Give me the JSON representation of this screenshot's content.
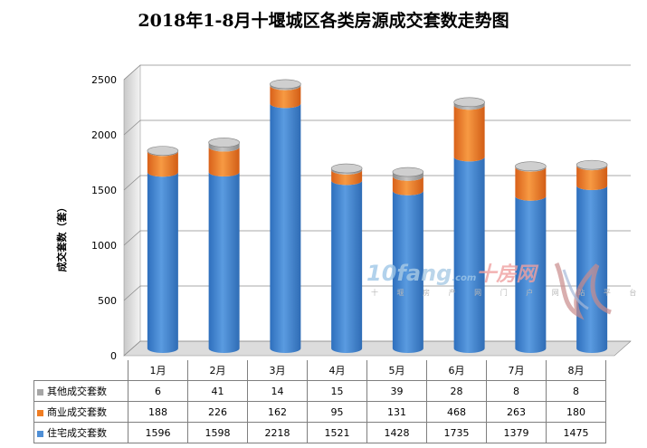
{
  "title": "2018年1-8月十堰城区各类房源成交套数走势图",
  "watermark": {
    "brand_a": "10",
    "brand_b": "fang",
    "brand_c": ".com",
    "brand_cn": "十房网",
    "slogan": "十 堰 房 产 网 门 户 网 站 平 台"
  },
  "chart_data": {
    "type": "bar",
    "stacked": true,
    "title": "2018年1-8月十堰城区各类房源成交套数走势图",
    "ylabel": "成交套数（套）",
    "xlabel": "",
    "ylim": [
      0,
      2500
    ],
    "yticks": [
      0,
      500,
      1000,
      1500,
      2000,
      2500
    ],
    "grid": true,
    "legend": "table-left",
    "categories": [
      "1月",
      "2月",
      "3月",
      "4月",
      "5月",
      "6月",
      "7月",
      "8月"
    ],
    "series": [
      {
        "name": "住宅成交套数",
        "color": "#4f8fd6",
        "values": [
          1596,
          1598,
          2218,
          1521,
          1428,
          1735,
          1379,
          1475
        ]
      },
      {
        "name": "商业成交套数",
        "color": "#f07d22",
        "values": [
          188,
          226,
          162,
          95,
          131,
          468,
          263,
          180
        ]
      },
      {
        "name": "其他成交套数",
        "color": "#a6a6a6",
        "values": [
          6,
          41,
          14,
          15,
          39,
          28,
          8,
          8
        ]
      }
    ]
  }
}
